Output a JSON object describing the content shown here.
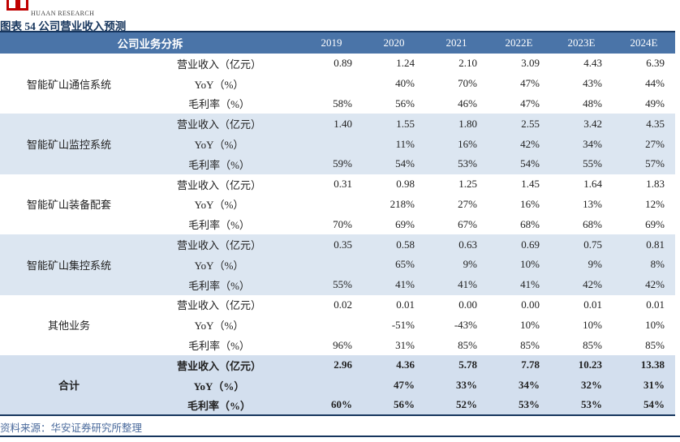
{
  "brand": {
    "name": "HUAAN RESEARCH"
  },
  "title": "图表 54 公司营业收入预测",
  "table": {
    "header": {
      "label": "公司业务分拆",
      "years": [
        "2019",
        "2020",
        "2021",
        "2022E",
        "2023E",
        "2024E"
      ]
    },
    "sections": [
      {
        "name": "智能矿山通信系统",
        "shaded": false,
        "bold": false,
        "rows": [
          {
            "metric": "营业收入（亿元）",
            "values": [
              "0.89",
              "1.24",
              "2.10",
              "3.09",
              "4.43",
              "6.39"
            ]
          },
          {
            "metric": "YoY（%）",
            "values": [
              "",
              "40%",
              "70%",
              "47%",
              "43%",
              "44%"
            ]
          },
          {
            "metric": "毛利率（%）",
            "values": [
              "58%",
              "56%",
              "46%",
              "47%",
              "48%",
              "49%"
            ]
          }
        ]
      },
      {
        "name": "智能矿山监控系统",
        "shaded": true,
        "bold": false,
        "rows": [
          {
            "metric": "营业收入（亿元）",
            "values": [
              "1.40",
              "1.55",
              "1.80",
              "2.55",
              "3.42",
              "4.35"
            ]
          },
          {
            "metric": "YoY（%）",
            "values": [
              "",
              "11%",
              "16%",
              "42%",
              "34%",
              "27%"
            ]
          },
          {
            "metric": "毛利率（%）",
            "values": [
              "59%",
              "54%",
              "53%",
              "54%",
              "55%",
              "57%"
            ]
          }
        ]
      },
      {
        "name": "智能矿山装备配套",
        "shaded": false,
        "bold": false,
        "rows": [
          {
            "metric": "营业收入（亿元）",
            "values": [
              "0.31",
              "0.98",
              "1.25",
              "1.45",
              "1.64",
              "1.83"
            ]
          },
          {
            "metric": "YoY（%）",
            "values": [
              "",
              "218%",
              "27%",
              "16%",
              "13%",
              "12%"
            ]
          },
          {
            "metric": "毛利率（%）",
            "values": [
              "70%",
              "69%",
              "67%",
              "68%",
              "68%",
              "69%"
            ]
          }
        ]
      },
      {
        "name": "智能矿山集控系统",
        "shaded": true,
        "bold": false,
        "rows": [
          {
            "metric": "营业收入（亿元）",
            "values": [
              "0.35",
              "0.58",
              "0.63",
              "0.69",
              "0.75",
              "0.81"
            ]
          },
          {
            "metric": "YoY（%）",
            "values": [
              "",
              "65%",
              "9%",
              "10%",
              "9%",
              "8%"
            ]
          },
          {
            "metric": "毛利率（%）",
            "values": [
              "55%",
              "41%",
              "41%",
              "41%",
              "42%",
              "42%"
            ]
          }
        ]
      },
      {
        "name": "其他业务",
        "shaded": false,
        "bold": false,
        "rows": [
          {
            "metric": "营业收入（亿元）",
            "values": [
              "0.02",
              "0.01",
              "0.00",
              "0.00",
              "0.01",
              "0.01"
            ]
          },
          {
            "metric": "YoY（%）",
            "values": [
              "",
              "-51%",
              "-43%",
              "10%",
              "10%",
              "10%"
            ]
          },
          {
            "metric": "毛利率（%）",
            "values": [
              "96%",
              "31%",
              "85%",
              "85%",
              "85%",
              "85%"
            ]
          }
        ]
      },
      {
        "name": "合计",
        "shaded": true,
        "bold": true,
        "rows": [
          {
            "metric": "营业收入（亿元）",
            "values": [
              "2.96",
              "4.36",
              "5.78",
              "7.78",
              "10.23",
              "13.38"
            ]
          },
          {
            "metric": "YoY（%）",
            "values": [
              "",
              "47%",
              "33%",
              "34%",
              "32%",
              "31%"
            ]
          },
          {
            "metric": "毛利率（%）",
            "values": [
              "60%",
              "56%",
              "52%",
              "53%",
              "53%",
              "54%"
            ]
          }
        ]
      }
    ]
  },
  "footer": {
    "source": "资料来源：华安证券研究所整理"
  },
  "colors": {
    "header_bg": "#4a74a8",
    "stripe": "#dce6f1",
    "total_stripe": "#d3dfee",
    "border_navy": "#17365e",
    "title": "#17365d",
    "source_text": "#4a6a9c",
    "logo_red": "#c00000"
  }
}
